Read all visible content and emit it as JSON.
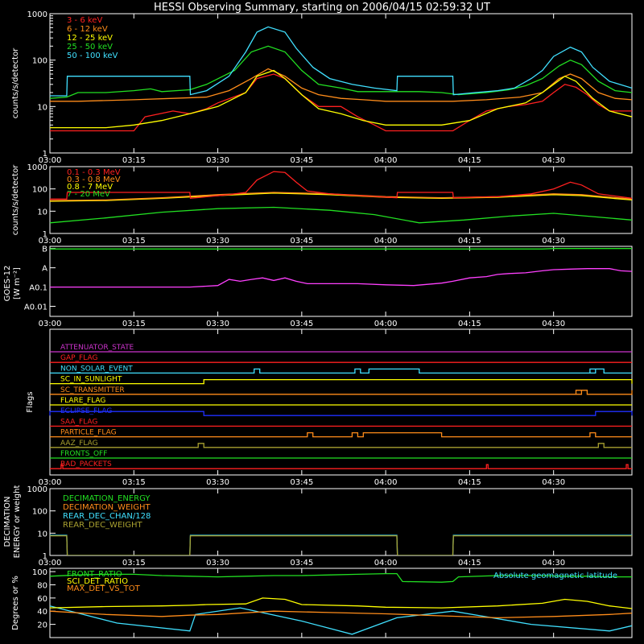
{
  "chart_data": {
    "type": "line",
    "title": "HESSI Observing Summary, starting on 2006/04/15 02:59:32 UT",
    "time_ticks": [
      "03:00",
      "03:15",
      "03:30",
      "03:45",
      "04:00",
      "04:15",
      "04:30"
    ],
    "time_tick_minutes": [
      0,
      15,
      30,
      45,
      60,
      75,
      90
    ],
    "time_range_minutes": [
      0,
      104
    ],
    "colors": {
      "background": "#000000",
      "axes": "#ffffff",
      "red": "#ff2020",
      "orange": "#ff8c1a",
      "yellow": "#ffff00",
      "green": "#22e022",
      "cyan": "#40e0ff",
      "magenta": "#ff40ff",
      "blue": "#2030ff",
      "purple": "#cc33cc",
      "olive": "#a8a030"
    },
    "panels": {
      "lo": {
        "ylabel": "counts/s/detector",
        "ticks": [
          "1",
          "10",
          "100",
          "1000"
        ],
        "legend": [
          "3 - 6 keV",
          "6 - 12 keV",
          "12 - 25 keV",
          "25 - 50 keV",
          "50 - 100 keV"
        ]
      },
      "hi": {
        "ylabel": "counts/s/detector",
        "ticks": [
          "1",
          "10",
          "100",
          "1000"
        ],
        "legend": [
          "0.1 - 0.3 MeV",
          "0.3 - 0.8 MeV",
          "0.8 - 7 MeV",
          "7 - 20 MeV"
        ]
      },
      "goes": {
        "ylabel": "GOES-12",
        "unit": "[W m⁻²]",
        "ticks": [
          "B",
          "A",
          "A0.1",
          "A0.01"
        ]
      },
      "flags": {
        "ylabel": "Flags",
        "labels": [
          "ATTENUATOR_STATE",
          "GAP_FLAG",
          "NON_SOLAR_EVENT",
          "SC_IN_SUNLIGHT",
          "SC_TRANSMITTER",
          "FLARE_FLAG",
          "ECLIPSE_FLAG",
          "SAA_FLAG",
          "PARTICLE_FLAG",
          "AAZ_FLAG",
          "FRONTS_OFF",
          "BAD_PACKETS"
        ]
      },
      "decim": {
        "ylabel": "DECIMATION ENERGY or weight",
        "ticks": [
          "1",
          "10",
          "100",
          "1000"
        ],
        "legend": [
          "DECIMATION_ENERGY",
          "DECIMATION_WEIGHT",
          "REAR_DEC_CHAN/128",
          "REAR_DEC_WEIGHT"
        ]
      },
      "ratio": {
        "ylabel": "Degrees or %",
        "ticks": [
          "20",
          "40",
          "60",
          "80",
          "100"
        ],
        "legend": [
          "FRONT_RATIO",
          "SCI_DET_RATIO",
          "MAX_DET_VS_TOT"
        ],
        "annotation": "Absolute geomagnetic latitude"
      }
    },
    "series": {
      "lo_3_6_keV": [
        [
          0,
          3
        ],
        [
          5,
          3
        ],
        [
          15,
          3
        ],
        [
          17,
          6
        ],
        [
          22,
          8
        ],
        [
          25,
          7
        ],
        [
          28,
          9
        ],
        [
          30,
          12
        ],
        [
          35,
          20
        ],
        [
          37,
          40
        ],
        [
          40,
          50
        ],
        [
          42,
          40
        ],
        [
          45,
          18
        ],
        [
          48,
          10
        ],
        [
          52,
          10
        ],
        [
          55,
          6
        ],
        [
          58,
          4
        ],
        [
          60,
          3
        ],
        [
          72,
          3
        ],
        [
          75,
          5
        ],
        [
          78,
          8
        ],
        [
          82,
          10
        ],
        [
          85,
          11
        ],
        [
          88,
          13
        ],
        [
          90,
          20
        ],
        [
          92,
          30
        ],
        [
          94,
          26
        ],
        [
          96,
          18
        ],
        [
          98,
          11
        ],
        [
          100,
          8
        ],
        [
          104,
          8
        ]
      ],
      "lo_6_12_keV": [
        [
          0,
          13
        ],
        [
          5,
          13
        ],
        [
          15,
          14
        ],
        [
          22,
          15
        ],
        [
          28,
          16
        ],
        [
          32,
          22
        ],
        [
          36,
          40
        ],
        [
          39,
          65
        ],
        [
          42,
          45
        ],
        [
          45,
          25
        ],
        [
          48,
          18
        ],
        [
          52,
          15
        ],
        [
          56,
          14
        ],
        [
          60,
          13
        ],
        [
          72,
          13
        ],
        [
          78,
          14
        ],
        [
          84,
          16
        ],
        [
          88,
          20
        ],
        [
          91,
          40
        ],
        [
          93,
          50
        ],
        [
          95,
          40
        ],
        [
          98,
          20
        ],
        [
          101,
          15
        ],
        [
          104,
          14
        ]
      ],
      "lo_12_25_keV": [
        [
          0,
          3.5
        ],
        [
          10,
          3.5
        ],
        [
          15,
          4
        ],
        [
          20,
          5
        ],
        [
          25,
          7
        ],
        [
          30,
          10
        ],
        [
          35,
          20
        ],
        [
          37,
          45
        ],
        [
          40,
          60
        ],
        [
          42,
          40
        ],
        [
          45,
          18
        ],
        [
          48,
          9
        ],
        [
          52,
          7
        ],
        [
          56,
          5
        ],
        [
          60,
          4
        ],
        [
          70,
          4
        ],
        [
          75,
          5
        ],
        [
          80,
          9
        ],
        [
          85,
          12
        ],
        [
          88,
          20
        ],
        [
          90,
          30
        ],
        [
          92,
          45
        ],
        [
          94,
          35
        ],
        [
          97,
          15
        ],
        [
          100,
          8
        ],
        [
          104,
          6
        ]
      ],
      "lo_25_50_keV": [
        [
          0,
          15
        ],
        [
          3,
          16
        ],
        [
          5,
          20
        ],
        [
          10,
          20
        ],
        [
          15,
          22
        ],
        [
          18,
          24
        ],
        [
          20,
          21
        ],
        [
          25,
          23
        ],
        [
          28,
          30
        ],
        [
          33,
          60
        ],
        [
          36,
          150
        ],
        [
          39,
          200
        ],
        [
          42,
          150
        ],
        [
          45,
          60
        ],
        [
          48,
          30
        ],
        [
          52,
          25
        ],
        [
          55,
          21
        ],
        [
          60,
          21
        ],
        [
          66,
          21
        ],
        [
          70,
          20
        ],
        [
          73,
          18
        ],
        [
          78,
          20
        ],
        [
          82,
          23
        ],
        [
          85,
          28
        ],
        [
          88,
          40
        ],
        [
          91,
          75
        ],
        [
          93,
          100
        ],
        [
          95,
          80
        ],
        [
          98,
          35
        ],
        [
          101,
          22
        ],
        [
          104,
          20
        ]
      ],
      "lo_50_100_keV": [
        [
          0,
          17
        ],
        [
          3,
          17
        ],
        [
          3.1,
          45
        ],
        [
          25,
          45
        ],
        [
          25.1,
          18
        ],
        [
          28,
          22
        ],
        [
          32,
          45
        ],
        [
          35,
          150
        ],
        [
          37,
          400
        ],
        [
          39,
          520
        ],
        [
          42,
          400
        ],
        [
          44,
          180
        ],
        [
          47,
          70
        ],
        [
          50,
          40
        ],
        [
          54,
          30
        ],
        [
          58,
          25
        ],
        [
          62,
          22
        ],
        [
          62.1,
          45
        ],
        [
          72,
          45
        ],
        [
          72.1,
          18
        ],
        [
          76,
          20
        ],
        [
          80,
          22
        ],
        [
          83,
          25
        ],
        [
          86,
          40
        ],
        [
          88,
          60
        ],
        [
          90,
          120
        ],
        [
          93,
          190
        ],
        [
          95,
          150
        ],
        [
          97,
          70
        ],
        [
          100,
          35
        ],
        [
          104,
          25
        ]
      ],
      "hi_0_1_0_3_MeV": [
        [
          0,
          35
        ],
        [
          3,
          35
        ],
        [
          3.1,
          70
        ],
        [
          25,
          70
        ],
        [
          25.1,
          38
        ],
        [
          32,
          55
        ],
        [
          35,
          70
        ],
        [
          37,
          250
        ],
        [
          40,
          600
        ],
        [
          42,
          550
        ],
        [
          44,
          200
        ],
        [
          46,
          80
        ],
        [
          50,
          60
        ],
        [
          55,
          50
        ],
        [
          62,
          40
        ],
        [
          62.1,
          70
        ],
        [
          72,
          70
        ],
        [
          72.1,
          40
        ],
        [
          80,
          45
        ],
        [
          86,
          60
        ],
        [
          90,
          100
        ],
        [
          93,
          200
        ],
        [
          95,
          150
        ],
        [
          98,
          60
        ],
        [
          104,
          38
        ]
      ],
      "hi_0_3_0_8_MeV": [
        [
          0,
          30
        ],
        [
          10,
          32
        ],
        [
          20,
          40
        ],
        [
          30,
          55
        ],
        [
          40,
          70
        ],
        [
          50,
          60
        ],
        [
          60,
          45
        ],
        [
          70,
          40
        ],
        [
          80,
          45
        ],
        [
          90,
          60
        ],
        [
          95,
          55
        ],
        [
          104,
          35
        ]
      ],
      "hi_0_8_7_MeV": [
        [
          0,
          28
        ],
        [
          10,
          30
        ],
        [
          20,
          38
        ],
        [
          30,
          50
        ],
        [
          40,
          65
        ],
        [
          50,
          55
        ],
        [
          60,
          42
        ],
        [
          70,
          38
        ],
        [
          80,
          42
        ],
        [
          90,
          55
        ],
        [
          95,
          50
        ],
        [
          104,
          32
        ]
      ],
      "hi_7_20_MeV": [
        [
          0,
          3
        ],
        [
          10,
          5
        ],
        [
          20,
          9
        ],
        [
          30,
          13
        ],
        [
          40,
          15
        ],
        [
          50,
          11
        ],
        [
          58,
          7
        ],
        [
          66,
          3
        ],
        [
          74,
          4
        ],
        [
          82,
          6
        ],
        [
          90,
          8
        ],
        [
          96,
          6
        ],
        [
          104,
          4
        ]
      ],
      "goes_flux": [
        [
          0,
          0.1
        ],
        [
          5,
          0.1
        ],
        [
          10,
          0.1
        ],
        [
          15,
          0.1
        ],
        [
          20,
          0.1
        ],
        [
          25,
          0.1
        ],
        [
          30,
          0.12
        ],
        [
          32,
          0.25
        ],
        [
          34,
          0.2
        ],
        [
          36,
          0.25
        ],
        [
          38,
          0.3
        ],
        [
          40,
          0.22
        ],
        [
          42,
          0.3
        ],
        [
          44,
          0.2
        ],
        [
          46,
          0.15
        ],
        [
          50,
          0.15
        ],
        [
          55,
          0.15
        ],
        [
          60,
          0.13
        ],
        [
          65,
          0.12
        ],
        [
          70,
          0.16
        ],
        [
          72,
          0.2
        ],
        [
          75,
          0.3
        ],
        [
          78,
          0.35
        ],
        [
          80,
          0.45
        ],
        [
          82,
          0.5
        ],
        [
          85,
          0.55
        ],
        [
          88,
          0.7
        ],
        [
          90,
          0.8
        ],
        [
          93,
          0.85
        ],
        [
          96,
          0.9
        ],
        [
          100,
          0.9
        ],
        [
          102,
          0.7
        ],
        [
          104,
          0.65
        ]
      ],
      "decim_rear_dec_chan": [
        [
          0,
          8
        ],
        [
          3,
          8
        ],
        [
          3.1,
          1
        ],
        [
          25,
          1
        ],
        [
          25.1,
          8
        ],
        [
          62,
          8
        ],
        [
          62.1,
          1
        ],
        [
          72,
          1
        ],
        [
          72.1,
          8
        ],
        [
          104,
          8
        ]
      ],
      "ratio_front": [
        [
          0,
          93
        ],
        [
          5,
          95
        ],
        [
          10,
          96
        ],
        [
          15,
          96
        ],
        [
          20,
          94
        ],
        [
          25,
          93
        ],
        [
          30,
          92
        ],
        [
          35,
          93
        ],
        [
          40,
          94
        ],
        [
          45,
          94
        ],
        [
          50,
          95
        ],
        [
          55,
          96
        ],
        [
          60,
          97
        ],
        [
          62,
          97
        ],
        [
          63,
          85
        ],
        [
          70,
          84
        ],
        [
          72,
          85
        ],
        [
          73,
          92
        ],
        [
          80,
          94
        ],
        [
          88,
          94
        ],
        [
          92,
          93
        ],
        [
          96,
          93
        ],
        [
          100,
          92
        ],
        [
          104,
          92
        ]
      ],
      "ratio_sci_det": [
        [
          0,
          45
        ],
        [
          10,
          47
        ],
        [
          20,
          48
        ],
        [
          25,
          49
        ],
        [
          28,
          50
        ],
        [
          35,
          51
        ],
        [
          38,
          60
        ],
        [
          42,
          58
        ],
        [
          45,
          50
        ],
        [
          55,
          48
        ],
        [
          60,
          46
        ],
        [
          70,
          45
        ],
        [
          80,
          48
        ],
        [
          88,
          52
        ],
        [
          92,
          58
        ],
        [
          96,
          55
        ],
        [
          100,
          48
        ],
        [
          104,
          44
        ]
      ],
      "ratio_max_det": [
        [
          0,
          40
        ],
        [
          10,
          35
        ],
        [
          20,
          32
        ],
        [
          25,
          34
        ],
        [
          30,
          35
        ],
        [
          40,
          40
        ],
        [
          50,
          38
        ],
        [
          60,
          36
        ],
        [
          70,
          33
        ],
        [
          80,
          30
        ],
        [
          90,
          32
        ],
        [
          100,
          35
        ],
        [
          104,
          37
        ]
      ],
      "ratio_geomag": [
        [
          0,
          48
        ],
        [
          12,
          22
        ],
        [
          25,
          10
        ],
        [
          26,
          35
        ],
        [
          34,
          45
        ],
        [
          45,
          25
        ],
        [
          54,
          5
        ],
        [
          62,
          30
        ],
        [
          72,
          40
        ],
        [
          86,
          20
        ],
        [
          100,
          10
        ],
        [
          104,
          18
        ]
      ]
    },
    "flag_segments": {
      "ATTENUATOR_STATE": [],
      "GAP_FLAG": [],
      "NON_SOLAR_EVENT": [
        [
          36.5,
          37.5
        ],
        [
          54.5,
          55.5
        ],
        [
          57,
          66
        ],
        [
          96.5,
          97.5
        ],
        [
          96.5,
          99
        ]
      ],
      "SC_IN_SUNLIGHT": [
        [
          27.5,
          104
        ]
      ],
      "SC_TRANSMITTER": [
        [
          94,
          95
        ],
        [
          94,
          96
        ],
        [
          104,
          104
        ]
      ],
      "FLARE_FLAG": [],
      "ECLIPSE_FLAG": [
        [
          0,
          27.5
        ],
        [
          97.5,
          104
        ]
      ],
      "SAA_FLAG": [],
      "PARTICLE_FLAG": [
        [
          46,
          47
        ],
        [
          54,
          55
        ],
        [
          56,
          70
        ],
        [
          96.5,
          97.5
        ]
      ],
      "AAZ_FLAG": [
        [
          26.5,
          27.5
        ],
        [
          98,
          99
        ]
      ],
      "FRONTS_OFF": [],
      "BAD_PACKETS": [
        [
          2,
          2.3
        ],
        [
          78,
          78.3
        ],
        [
          103,
          103.3
        ]
      ]
    }
  }
}
